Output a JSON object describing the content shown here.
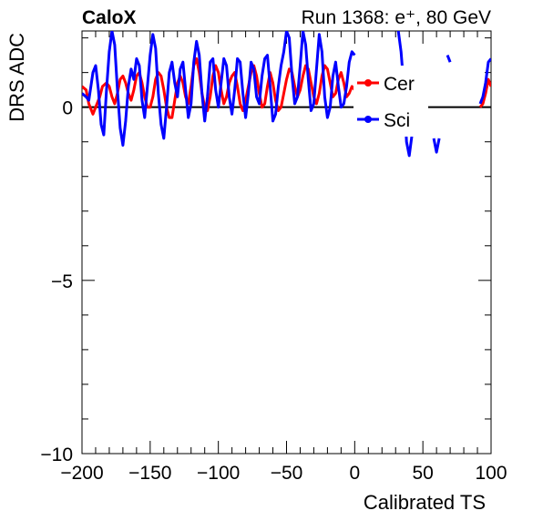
{
  "chart_data": {
    "type": "line",
    "title_left": "CaloX",
    "title_right": "Run 1368: e⁺, 80 GeV",
    "xlabel": "Calibrated TS",
    "ylabel": "DRS ADC",
    "xlim": [
      -200,
      100
    ],
    "ylim": [
      -10,
      2.2
    ],
    "x_ticks": [
      -200,
      -150,
      -100,
      -50,
      0,
      50,
      100
    ],
    "x_tick_labels": [
      "−200",
      "−150",
      "−100",
      "−50",
      "0",
      "50",
      "100"
    ],
    "y_ticks": [
      -10,
      -5,
      0
    ],
    "y_tick_labels": [
      "−10",
      "−5",
      "0"
    ],
    "reference_line_y": 0,
    "legend_position": "upper-right",
    "series": [
      {
        "name": "Cer",
        "color": "#ff0000",
        "x": [
          -200,
          -197,
          -195,
          -192,
          -190,
          -187,
          -185,
          -182,
          -180,
          -178,
          -176,
          -174,
          -172,
          -170,
          -168,
          -166,
          -164,
          -162,
          -160,
          -158,
          -156,
          -154,
          -152,
          -150,
          -148,
          -146,
          -144,
          -142,
          -140,
          -138,
          -136,
          -134,
          -132,
          -130,
          -128,
          -126,
          -124,
          -122,
          -120,
          -118,
          -116,
          -114,
          -112,
          -110,
          -108,
          -106,
          -104,
          -102,
          -100,
          -98,
          -96,
          -94,
          -92,
          -90,
          -88,
          -86,
          -84,
          -82,
          -80,
          -78,
          -76,
          -74,
          -72,
          -70,
          -68,
          -66,
          -64,
          -62,
          -60,
          -58,
          -56,
          -54,
          -52,
          -50,
          -48,
          -46,
          -44,
          -42,
          -40,
          -38,
          -36,
          -34,
          -32,
          -30,
          -28,
          -26,
          -24,
          -22,
          -20,
          -18,
          -16,
          -14,
          -12,
          -10,
          -8,
          -6,
          -4,
          -2,
          0,
          null,
          92,
          94,
          96,
          98,
          100
        ],
        "y": [
          0.6,
          0.5,
          0.1,
          -0.2,
          0.0,
          0.3,
          0.6,
          0.7,
          0.6,
          0.3,
          0.1,
          0.4,
          0.8,
          0.9,
          0.7,
          0.4,
          0.2,
          0.5,
          0.9,
          1.0,
          0.7,
          0.3,
          0.0,
          0.0,
          0.3,
          0.8,
          1.0,
          0.9,
          0.5,
          0.0,
          -0.3,
          -0.3,
          0.2,
          0.7,
          0.9,
          0.7,
          0.3,
          0.1,
          0.6,
          1.2,
          1.4,
          1.0,
          0.4,
          0.0,
          -0.1,
          0.3,
          0.9,
          1.2,
          1.0,
          0.5,
          0.1,
          0.3,
          0.7,
          0.9,
          1.0,
          0.6,
          0.1,
          -0.1,
          0.2,
          0.6,
          1.0,
          1.2,
          0.9,
          0.4,
          0.0,
          0.1,
          0.6,
          1.0,
          0.7,
          0.2,
          -0.1,
          0.0,
          0.4,
          0.8,
          1.1,
          1.0,
          0.6,
          0.3,
          0.5,
          0.9,
          1.2,
          1.1,
          0.7,
          0.3,
          0.1,
          0.4,
          0.9,
          1.2,
          1.1,
          0.7,
          0.3,
          0.4,
          0.8,
          1.0,
          0.7,
          0.3,
          0.4,
          0.6,
          0.5,
          null,
          0.0,
          0.1,
          0.4,
          0.8,
          0.6
        ]
      },
      {
        "name": "Sci",
        "color": "#0000ff",
        "x": [
          -200,
          -197,
          -195,
          -192,
          -190,
          -188,
          -186,
          -184,
          -182,
          -180,
          -178,
          -176,
          -174,
          -172,
          -170,
          -168,
          -166,
          -164,
          -162,
          -160,
          -158,
          -156,
          -154,
          -152,
          -150,
          -148,
          -146,
          -144,
          -142,
          -140,
          -138,
          -136,
          -134,
          -132,
          -130,
          -128,
          -126,
          -124,
          -122,
          -120,
          -118,
          -116,
          -114,
          -112,
          -110,
          -108,
          -106,
          -104,
          -102,
          -100,
          -98,
          -96,
          -94,
          -92,
          -90,
          -88,
          -86,
          -84,
          -82,
          -80,
          -78,
          -76,
          -74,
          -72,
          -70,
          -68,
          -66,
          -64,
          -62,
          -60,
          -58,
          -56,
          -54,
          -52,
          -50,
          -48,
          -46,
          -44,
          -42,
          -40,
          -38,
          -36,
          -34,
          -32,
          -30,
          -28,
          -26,
          -24,
          -22,
          -20,
          -18,
          -16,
          -14,
          -12,
          -10,
          -8,
          -6,
          -4,
          -2,
          0,
          null,
          32,
          34,
          36,
          38,
          40,
          42,
          null,
          58,
          60,
          62,
          null,
          68,
          70,
          null,
          92,
          94,
          96,
          98,
          100
        ],
        "y": [
          0.4,
          0.3,
          0.2,
          1.0,
          1.2,
          0.5,
          -0.5,
          -0.8,
          0.5,
          1.6,
          2.2,
          1.8,
          0.5,
          -0.6,
          -1.1,
          -0.4,
          0.6,
          1.1,
          0.8,
          1.4,
          1.2,
          0.2,
          -0.3,
          0.6,
          1.5,
          2.1,
          1.7,
          0.4,
          -0.5,
          -0.9,
          0.0,
          1.0,
          1.3,
          0.7,
          0.3,
          1.1,
          1.3,
          0.5,
          -0.3,
          0.1,
          1.3,
          1.9,
          1.5,
          0.4,
          -0.4,
          0.3,
          1.3,
          1.4,
          0.5,
          0.0,
          0.7,
          1.4,
          1.2,
          0.3,
          -0.2,
          0.5,
          1.4,
          1.3,
          0.4,
          -0.3,
          0.4,
          1.3,
          1.1,
          0.3,
          0.1,
          0.9,
          1.4,
          1.5,
          0.6,
          -0.4,
          -0.2,
          0.6,
          1.2,
          1.6,
          2.2,
          2.0,
          0.9,
          0.1,
          0.3,
          1.2,
          2.2,
          1.8,
          0.8,
          -0.1,
          0.1,
          1.1,
          2.1,
          1.6,
          0.3,
          -0.3,
          0.0,
          0.9,
          1.3,
          0.6,
          0.0,
          0.1,
          0.6,
          1.3,
          1.6,
          1.5,
          null,
          2.2,
          1.6,
          0.6,
          -1.0,
          -1.4,
          -0.8,
          null,
          -0.9,
          -1.3,
          -0.9,
          null,
          1.5,
          1.3,
          null,
          0.1,
          0.3,
          0.7,
          1.3,
          1.4
        ]
      }
    ]
  }
}
